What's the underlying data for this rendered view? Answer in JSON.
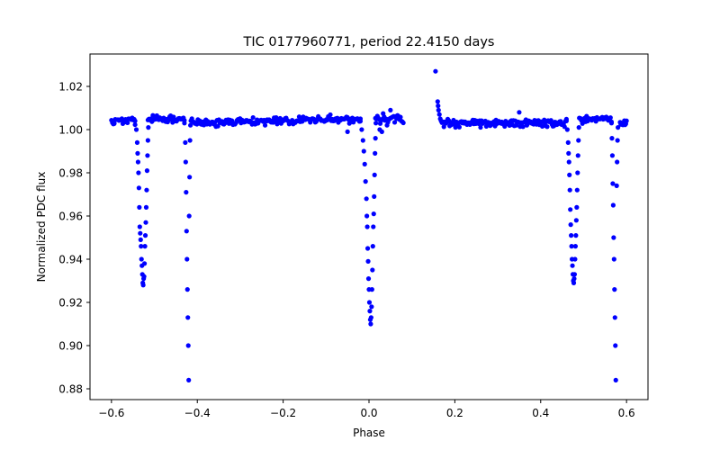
{
  "chart_data": {
    "type": "scatter",
    "title": "TIC 0177960771, period 22.4150 days",
    "xlabel": "Phase",
    "ylabel": "Normalized PDC flux",
    "xlim": [
      -0.65,
      0.65
    ],
    "ylim": [
      0.875,
      1.035
    ],
    "xticks": [
      -0.6,
      -0.4,
      -0.2,
      0.0,
      0.2,
      0.4,
      0.6
    ],
    "xtick_labels": [
      "−0.6",
      "−0.4",
      "−0.2",
      "0.0",
      "0.2",
      "0.4",
      "0.6"
    ],
    "yticks": [
      0.88,
      0.9,
      0.92,
      0.94,
      0.96,
      0.98,
      1.0,
      1.02
    ],
    "ytick_labels": [
      "0.88",
      "0.90",
      "0.92",
      "0.94",
      "0.96",
      "0.98",
      "1.00",
      "1.02"
    ],
    "grid": false,
    "marker_color": "#0000ff",
    "baseline_segments": [
      {
        "x_start": -0.6,
        "x_end": -0.545,
        "level": 1.004,
        "scatter": 0.0018,
        "n": 26
      },
      {
        "x_start": -0.515,
        "x_end": -0.43,
        "level": 1.005,
        "scatter": 0.0018,
        "n": 38
      },
      {
        "x_start": -0.415,
        "x_end": -0.02,
        "level": 1.003,
        "scatter": 0.0016,
        "n": 170,
        "trend": 0.002
      },
      {
        "x_start": 0.015,
        "x_end": 0.08,
        "level": 1.005,
        "scatter": 0.002,
        "n": 30
      },
      {
        "x_start": 0.17,
        "x_end": 0.46,
        "level": 1.003,
        "scatter": 0.0016,
        "n": 130
      },
      {
        "x_start": 0.49,
        "x_end": 0.565,
        "level": 1.005,
        "scatter": 0.0016,
        "n": 32
      },
      {
        "x_start": 0.585,
        "x_end": 0.6,
        "level": 1.003,
        "scatter": 0.0015,
        "n": 10
      }
    ],
    "dips": [
      {
        "ingress": [
          [
            -0.545,
            1.004
          ],
          [
            -0.542,
            1.0
          ],
          [
            -0.54,
            0.994
          ],
          [
            -0.539,
            0.989
          ],
          [
            -0.538,
            0.985
          ],
          [
            -0.537,
            0.98
          ],
          [
            -0.536,
            0.973
          ],
          [
            -0.535,
            0.964
          ],
          [
            -0.534,
            0.955
          ],
          [
            -0.533,
            0.952
          ],
          [
            -0.532,
            0.949
          ]
        ],
        "bottom": [
          [
            -0.531,
            0.946
          ],
          [
            -0.53,
            0.94
          ],
          [
            -0.529,
            0.937
          ],
          [
            -0.528,
            0.933
          ],
          [
            -0.527,
            0.929
          ],
          [
            -0.526,
            0.928
          ],
          [
            -0.525,
            0.931
          ],
          [
            -0.524,
            0.932
          ],
          [
            -0.523,
            0.938
          ]
        ],
        "egress": [
          [
            -0.522,
            0.946
          ],
          [
            -0.521,
            0.951
          ],
          [
            -0.52,
            0.957
          ],
          [
            -0.519,
            0.964
          ],
          [
            -0.518,
            0.972
          ],
          [
            -0.517,
            0.981
          ],
          [
            -0.516,
            0.988
          ],
          [
            -0.515,
            0.995
          ],
          [
            -0.514,
            1.001
          ]
        ]
      },
      {
        "ingress": [
          [
            -0.43,
            1.003
          ],
          [
            -0.428,
            0.994
          ],
          [
            -0.427,
            0.985
          ],
          [
            -0.426,
            0.971
          ],
          [
            -0.425,
            0.953
          ]
        ],
        "bottom": [
          [
            -0.424,
            0.94
          ],
          [
            -0.423,
            0.926
          ],
          [
            -0.422,
            0.913
          ],
          [
            -0.421,
            0.9
          ],
          [
            -0.42,
            0.884
          ]
        ],
        "egress": [
          [
            -0.419,
            0.96
          ],
          [
            -0.418,
            0.978
          ],
          [
            -0.417,
            0.995
          ],
          [
            -0.416,
            1.002
          ]
        ]
      },
      {
        "ingress": [
          [
            -0.02,
            1.005
          ],
          [
            -0.017,
            1.0
          ],
          [
            -0.014,
            0.995
          ],
          [
            -0.012,
            0.99
          ],
          [
            -0.01,
            0.984
          ],
          [
            -0.008,
            0.976
          ],
          [
            -0.006,
            0.968
          ],
          [
            -0.005,
            0.96
          ],
          [
            -0.004,
            0.955
          ],
          [
            -0.003,
            0.945
          ]
        ],
        "bottom": [
          [
            -0.002,
            0.939
          ],
          [
            -0.001,
            0.931
          ],
          [
            0.0,
            0.926
          ],
          [
            0.001,
            0.92
          ],
          [
            0.002,
            0.916
          ],
          [
            0.003,
            0.912
          ],
          [
            0.004,
            0.91
          ],
          [
            0.005,
            0.913
          ],
          [
            0.006,
            0.918
          ]
        ],
        "egress": [
          [
            0.007,
            0.926
          ],
          [
            0.008,
            0.935
          ],
          [
            0.009,
            0.946
          ],
          [
            0.01,
            0.955
          ],
          [
            0.011,
            0.961
          ],
          [
            0.012,
            0.969
          ],
          [
            0.013,
            0.979
          ],
          [
            0.014,
            0.989
          ],
          [
            0.015,
            0.996
          ],
          [
            0.016,
            1.003
          ]
        ]
      },
      {
        "ingress": [
          [
            0.46,
            1.004
          ],
          [
            0.462,
            1.0
          ],
          [
            0.464,
            0.994
          ],
          [
            0.465,
            0.989
          ],
          [
            0.466,
            0.985
          ],
          [
            0.467,
            0.979
          ],
          [
            0.468,
            0.972
          ],
          [
            0.469,
            0.963
          ],
          [
            0.47,
            0.956
          ],
          [
            0.471,
            0.951
          ],
          [
            0.472,
            0.946
          ]
        ],
        "bottom": [
          [
            0.473,
            0.94
          ],
          [
            0.474,
            0.937
          ],
          [
            0.475,
            0.933
          ],
          [
            0.476,
            0.93
          ],
          [
            0.477,
            0.929
          ],
          [
            0.478,
            0.931
          ],
          [
            0.479,
            0.933
          ],
          [
            0.48,
            0.94
          ]
        ],
        "egress": [
          [
            0.481,
            0.946
          ],
          [
            0.482,
            0.951
          ],
          [
            0.483,
            0.958
          ],
          [
            0.484,
            0.964
          ],
          [
            0.485,
            0.972
          ],
          [
            0.486,
            0.98
          ],
          [
            0.487,
            0.988
          ],
          [
            0.488,
            0.995
          ],
          [
            0.489,
            1.001
          ]
        ]
      },
      {
        "ingress": [
          [
            0.565,
            1.003
          ],
          [
            0.566,
            0.996
          ],
          [
            0.567,
            0.988
          ],
          [
            0.568,
            0.975
          ],
          [
            0.569,
            0.965
          ]
        ],
        "bottom": [
          [
            0.57,
            0.95
          ],
          [
            0.571,
            0.94
          ],
          [
            0.572,
            0.926
          ],
          [
            0.573,
            0.913
          ],
          [
            0.574,
            0.9
          ],
          [
            0.575,
            0.884
          ]
        ],
        "egress": [
          [
            0.577,
            0.974
          ],
          [
            0.578,
            0.985
          ],
          [
            0.579,
            0.995
          ],
          [
            0.58,
            1.001
          ]
        ]
      }
    ],
    "extra_points": [
      [
        0.155,
        1.027
      ],
      [
        0.16,
        1.013
      ],
      [
        0.161,
        1.011
      ],
      [
        0.162,
        1.009
      ],
      [
        0.164,
        1.007
      ],
      [
        0.166,
        1.005
      ],
      [
        0.168,
        1.004
      ],
      [
        0.05,
        1.009
      ],
      [
        0.042,
        1.002
      ],
      [
        0.03,
        0.999
      ],
      [
        0.025,
        1.0
      ],
      [
        0.35,
        1.008
      ],
      [
        -0.05,
        0.999
      ]
    ]
  }
}
